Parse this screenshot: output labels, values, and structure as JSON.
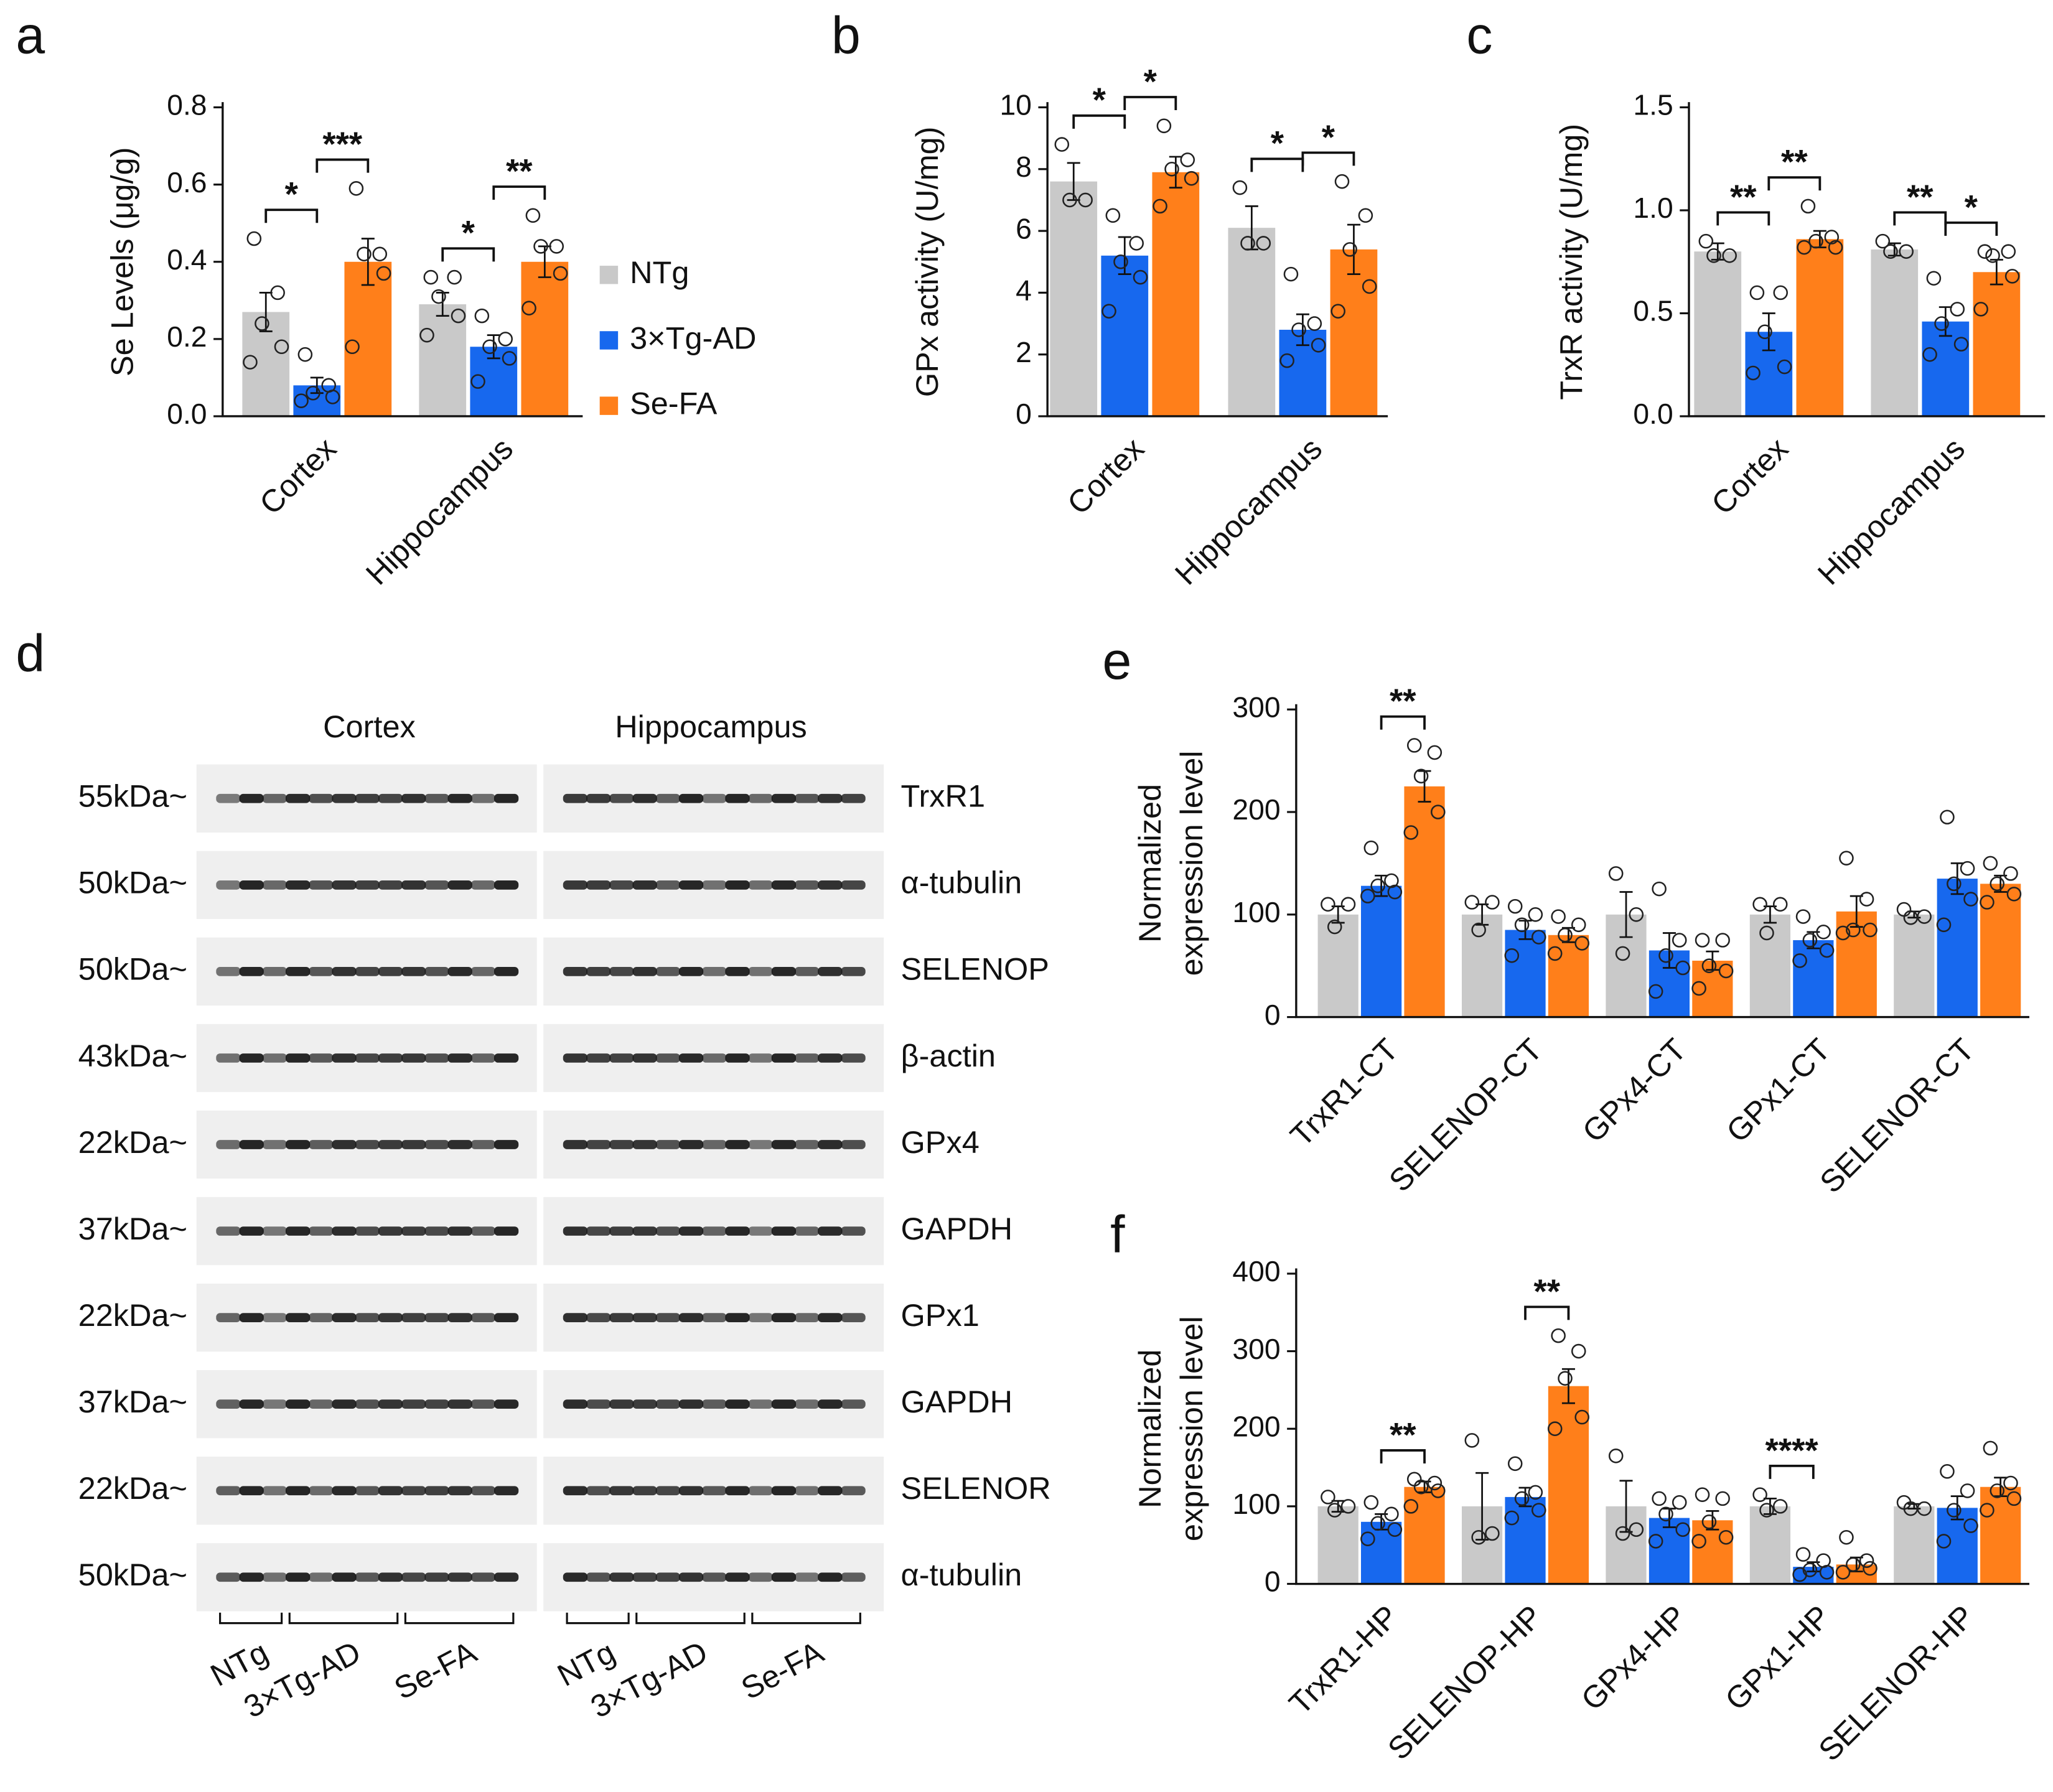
{
  "chart_data": [
    {
      "type": "bar",
      "panel": "a",
      "ylabel": "Se Levels (μg/g)",
      "categories": [
        "Cortex",
        "Hippocampus"
      ],
      "ylim": [
        0,
        0.8
      ],
      "yticks": [
        {
          "value": 0,
          "label": "0.0"
        },
        0.2,
        0.4,
        0.6,
        0.8
      ],
      "legend": "right",
      "series": [
        {
          "name": "NTg",
          "color": "#c9c9c9",
          "values": [
            0.27,
            0.29
          ],
          "errors": [
            0.05,
            0.03
          ],
          "points": [
            [
              0.46,
              0.32,
              0.24,
              0.18,
              0.14
            ],
            [
              0.36,
              0.36,
              0.31,
              0.26,
              0.21
            ]
          ]
        },
        {
          "name": "3×Tg-AD",
          "color": "#1768ee",
          "values": [
            0.08,
            0.18
          ],
          "errors": [
            0.02,
            0.03
          ],
          "points": [
            [
              0.16,
              0.08,
              0.06,
              0.05,
              0.04
            ],
            [
              0.26,
              0.2,
              0.18,
              0.15,
              0.09
            ]
          ]
        },
        {
          "name": "Se-FA",
          "color": "#ff7f1a",
          "values": [
            0.4,
            0.4
          ],
          "errors": [
            0.06,
            0.04
          ],
          "points": [
            [
              0.59,
              0.42,
              0.42,
              0.37,
              0.18
            ],
            [
              0.52,
              0.44,
              0.44,
              0.37,
              0.28
            ]
          ]
        }
      ],
      "annotations": [
        {
          "text": "*",
          "category": 0,
          "between": [
            0,
            1
          ]
        },
        {
          "text": "***",
          "category": 0,
          "between": [
            1,
            2
          ]
        },
        {
          "text": "*",
          "category": 1,
          "between": [
            0,
            1
          ]
        },
        {
          "text": "**",
          "category": 1,
          "between": [
            1,
            2
          ]
        }
      ]
    },
    {
      "type": "bar",
      "panel": "b",
      "ylabel": "GPx activity (U/mg)",
      "categories": [
        "Cortex",
        "Hippocampus"
      ],
      "ylim": [
        0,
        10
      ],
      "yticks": [
        0,
        2,
        4,
        6,
        8,
        10
      ],
      "series": [
        {
          "color": "#c9c9c9",
          "values": [
            7.6,
            6.1
          ],
          "errors": [
            0.6,
            0.7
          ],
          "points": [
            [
              8.8,
              7.0,
              7.0
            ],
            [
              7.4,
              5.6,
              5.6
            ]
          ]
        },
        {
          "color": "#1768ee",
          "values": [
            5.2,
            2.8
          ],
          "errors": [
            0.6,
            0.5
          ],
          "points": [
            [
              6.5,
              5.6,
              5.0,
              4.5,
              3.4
            ],
            [
              4.6,
              3.0,
              2.8,
              2.3,
              1.8
            ]
          ]
        },
        {
          "color": "#ff7f1a",
          "values": [
            7.9,
            5.4
          ],
          "errors": [
            0.5,
            0.8
          ],
          "points": [
            [
              9.4,
              8.3,
              8.0,
              7.7,
              6.8
            ],
            [
              7.6,
              6.5,
              5.4,
              4.2,
              3.4
            ]
          ]
        }
      ],
      "annotations": [
        {
          "text": "*",
          "category": 0,
          "between": [
            0,
            1
          ]
        },
        {
          "text": "*",
          "category": 0,
          "between": [
            1,
            2
          ]
        },
        {
          "text": "*",
          "category": 1,
          "between": [
            0,
            1
          ]
        },
        {
          "text": "*",
          "category": 1,
          "between": [
            1,
            2
          ]
        }
      ]
    },
    {
      "type": "bar",
      "panel": "c",
      "ylabel": "TrxR activity (U/mg)",
      "categories": [
        "Cortex",
        "Hippocampus"
      ],
      "ylim": [
        0,
        1.5
      ],
      "yticks": [
        {
          "value": 0,
          "label": "0.0"
        },
        0.5,
        {
          "value": 1,
          "label": "1.0"
        },
        1.5
      ],
      "series": [
        {
          "color": "#c9c9c9",
          "values": [
            0.8,
            0.81
          ],
          "errors": [
            0.04,
            0.03
          ],
          "points": [
            [
              0.85,
              0.78,
              0.78
            ],
            [
              0.85,
              0.8,
              0.8
            ]
          ]
        },
        {
          "color": "#1768ee",
          "values": [
            0.41,
            0.46
          ],
          "errors": [
            0.09,
            0.07
          ],
          "points": [
            [
              0.6,
              0.6,
              0.41,
              0.24,
              0.21
            ],
            [
              0.67,
              0.52,
              0.45,
              0.35,
              0.3
            ]
          ]
        },
        {
          "color": "#ff7f1a",
          "values": [
            0.86,
            0.7
          ],
          "errors": [
            0.04,
            0.06
          ],
          "points": [
            [
              1.02,
              0.87,
              0.85,
              0.82,
              0.82
            ],
            [
              0.8,
              0.8,
              0.78,
              0.68,
              0.52
            ]
          ]
        }
      ],
      "annotations": [
        {
          "text": "**",
          "category": 0,
          "between": [
            0,
            1
          ]
        },
        {
          "text": "**",
          "category": 0,
          "between": [
            1,
            2
          ]
        },
        {
          "text": "**",
          "category": 1,
          "between": [
            0,
            1
          ]
        },
        {
          "text": "*",
          "category": 1,
          "between": [
            1,
            2
          ]
        }
      ]
    },
    {
      "type": "bar",
      "panel": "e",
      "ylabel": [
        "Normalized",
        "expression level"
      ],
      "categories": [
        "TrxR1-CT",
        "SELENOP-CT",
        "GPx4-CT",
        "GPx1-CT",
        "SELENOR-CT"
      ],
      "ylim": [
        0,
        300
      ],
      "yticks": [
        0,
        100,
        200,
        300
      ],
      "series": [
        {
          "color": "#c9c9c9",
          "values": [
            100,
            100,
            100,
            100,
            100
          ],
          "errors": [
            8,
            10,
            22,
            8,
            3
          ],
          "points": [
            [
              110,
              110,
              88
            ],
            [
              112,
              112,
              85
            ],
            [
              140,
              100,
              62
            ],
            [
              110,
              110,
              82
            ],
            [
              105,
              98,
              97
            ]
          ]
        },
        {
          "color": "#1768ee",
          "values": [
            128,
            85,
            65,
            75,
            135
          ],
          "errors": [
            10,
            9,
            17,
            8,
            15
          ],
          "points": [
            [
              165,
              133,
              128,
              122,
              118
            ],
            [
              108,
              100,
              90,
              78,
              60
            ],
            [
              125,
              75,
              60,
              48,
              25
            ],
            [
              98,
              83,
              75,
              65,
              55
            ],
            [
              195,
              145,
              130,
              115,
              90
            ]
          ]
        },
        {
          "color": "#ff7f1a",
          "values": [
            225,
            80,
            55,
            103,
            130
          ],
          "errors": [
            15,
            7,
            9,
            15,
            8
          ],
          "points": [
            [
              265,
              258,
              235,
              200,
              180
            ],
            [
              98,
              90,
              80,
              72,
              62
            ],
            [
              75,
              75,
              50,
              45,
              28
            ],
            [
              155,
              115,
              85,
              85,
              82
            ],
            [
              150,
              140,
              130,
              120,
              112
            ]
          ]
        }
      ],
      "annotations": [
        {
          "text": "**",
          "category": 0,
          "between": [
            1,
            2
          ]
        }
      ]
    },
    {
      "type": "bar",
      "panel": "f",
      "ylabel": [
        "Normalized",
        "expression level"
      ],
      "categories": [
        "TrxR1-HP",
        "SELENOP-HP",
        "GPx4-HP",
        "GPx1-HP",
        "SELENOR-HP"
      ],
      "ylim": [
        0,
        400
      ],
      "yticks": [
        0,
        100,
        200,
        300,
        400
      ],
      "series": [
        {
          "color": "#c9c9c9",
          "values": [
            100,
            100,
            100,
            100,
            100
          ],
          "errors": [
            7,
            43,
            33,
            10,
            3
          ],
          "points": [
            [
              112,
              100,
              95
            ],
            [
              185,
              65,
              60
            ],
            [
              165,
              70,
              65
            ],
            [
              115,
              100,
              95
            ],
            [
              105,
              97,
              97
            ]
          ]
        },
        {
          "color": "#1768ee",
          "values": [
            80,
            112,
            85,
            22,
            98
          ],
          "errors": [
            10,
            12,
            12,
            6,
            15
          ],
          "points": [
            [
              105,
              90,
              78,
              70,
              58
            ],
            [
              155,
              118,
              110,
              95,
              85
            ],
            [
              110,
              105,
              90,
              70,
              55
            ],
            [
              38,
              30,
              18,
              15,
              12
            ],
            [
              145,
              120,
              95,
              75,
              55
            ]
          ]
        },
        {
          "color": "#ff7f1a",
          "values": [
            125,
            255,
            82,
            25,
            125
          ],
          "errors": [
            7,
            22,
            12,
            9,
            12
          ],
          "points": [
            [
              135,
              130,
              125,
              120,
              100
            ],
            [
              320,
              300,
              265,
              215,
              200
            ],
            [
              115,
              110,
              80,
              60,
              55
            ],
            [
              60,
              30,
              25,
              20,
              15
            ],
            [
              175,
              130,
              120,
              110,
              95
            ]
          ]
        }
      ],
      "annotations": [
        {
          "text": "**",
          "category": 0,
          "between": [
            1,
            2
          ]
        },
        {
          "text": "**",
          "category": 1,
          "between": [
            1,
            2
          ]
        },
        {
          "text": "****",
          "category": 3,
          "between": [
            0,
            1
          ]
        }
      ]
    }
  ],
  "blot": {
    "panel": "d",
    "columns": [
      "Cortex",
      "Hippocampus"
    ],
    "rows": [
      {
        "size": "55kDa~",
        "protein": "TrxR1"
      },
      {
        "size": "50kDa~",
        "protein": "α-tubulin"
      },
      {
        "size": "50kDa~",
        "protein": "SELENOP"
      },
      {
        "size": "43kDa~",
        "protein": "β-actin"
      },
      {
        "size": "22kDa~",
        "protein": "GPx4"
      },
      {
        "size": "37kDa~",
        "protein": "GAPDH"
      },
      {
        "size": "22kDa~",
        "protein": "GPx1"
      },
      {
        "size": "37kDa~",
        "protein": "GAPDH"
      },
      {
        "size": "22kDa~",
        "protein": "SELENOR"
      },
      {
        "size": "50kDa~",
        "protein": "α-tubulin"
      }
    ],
    "groups": [
      "NTg",
      "3×Tg-AD",
      "Se-FA",
      "NTg",
      "3×Tg-AD",
      "Se-FA"
    ]
  }
}
